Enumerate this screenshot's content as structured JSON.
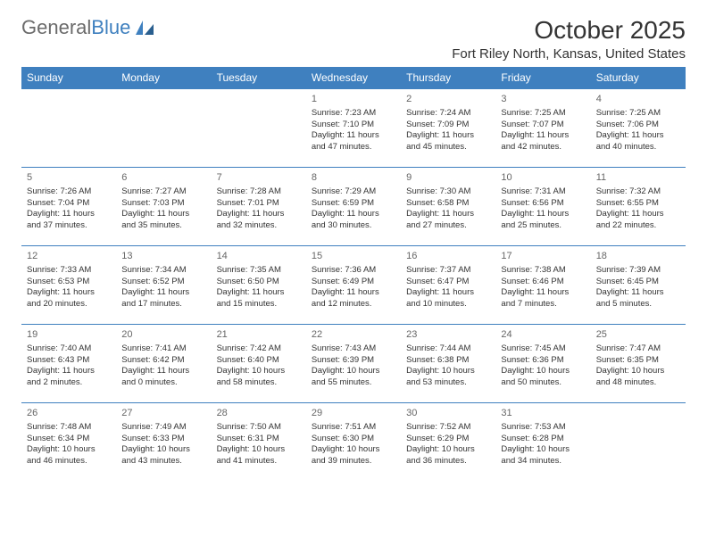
{
  "brand": {
    "word1": "General",
    "word2": "Blue"
  },
  "colors": {
    "accent": "#3f80bf",
    "text": "#333333",
    "muted": "#6b6b6b",
    "bg": "#ffffff"
  },
  "title": "October 2025",
  "location": "Fort Riley North, Kansas, United States",
  "day_headers": [
    "Sunday",
    "Monday",
    "Tuesday",
    "Wednesday",
    "Thursday",
    "Friday",
    "Saturday"
  ],
  "weeks": [
    [
      null,
      null,
      null,
      {
        "n": "1",
        "sr": "Sunrise: 7:23 AM",
        "ss": "Sunset: 7:10 PM",
        "dl": "Daylight: 11 hours and 47 minutes."
      },
      {
        "n": "2",
        "sr": "Sunrise: 7:24 AM",
        "ss": "Sunset: 7:09 PM",
        "dl": "Daylight: 11 hours and 45 minutes."
      },
      {
        "n": "3",
        "sr": "Sunrise: 7:25 AM",
        "ss": "Sunset: 7:07 PM",
        "dl": "Daylight: 11 hours and 42 minutes."
      },
      {
        "n": "4",
        "sr": "Sunrise: 7:25 AM",
        "ss": "Sunset: 7:06 PM",
        "dl": "Daylight: 11 hours and 40 minutes."
      }
    ],
    [
      {
        "n": "5",
        "sr": "Sunrise: 7:26 AM",
        "ss": "Sunset: 7:04 PM",
        "dl": "Daylight: 11 hours and 37 minutes."
      },
      {
        "n": "6",
        "sr": "Sunrise: 7:27 AM",
        "ss": "Sunset: 7:03 PM",
        "dl": "Daylight: 11 hours and 35 minutes."
      },
      {
        "n": "7",
        "sr": "Sunrise: 7:28 AM",
        "ss": "Sunset: 7:01 PM",
        "dl": "Daylight: 11 hours and 32 minutes."
      },
      {
        "n": "8",
        "sr": "Sunrise: 7:29 AM",
        "ss": "Sunset: 6:59 PM",
        "dl": "Daylight: 11 hours and 30 minutes."
      },
      {
        "n": "9",
        "sr": "Sunrise: 7:30 AM",
        "ss": "Sunset: 6:58 PM",
        "dl": "Daylight: 11 hours and 27 minutes."
      },
      {
        "n": "10",
        "sr": "Sunrise: 7:31 AM",
        "ss": "Sunset: 6:56 PM",
        "dl": "Daylight: 11 hours and 25 minutes."
      },
      {
        "n": "11",
        "sr": "Sunrise: 7:32 AM",
        "ss": "Sunset: 6:55 PM",
        "dl": "Daylight: 11 hours and 22 minutes."
      }
    ],
    [
      {
        "n": "12",
        "sr": "Sunrise: 7:33 AM",
        "ss": "Sunset: 6:53 PM",
        "dl": "Daylight: 11 hours and 20 minutes."
      },
      {
        "n": "13",
        "sr": "Sunrise: 7:34 AM",
        "ss": "Sunset: 6:52 PM",
        "dl": "Daylight: 11 hours and 17 minutes."
      },
      {
        "n": "14",
        "sr": "Sunrise: 7:35 AM",
        "ss": "Sunset: 6:50 PM",
        "dl": "Daylight: 11 hours and 15 minutes."
      },
      {
        "n": "15",
        "sr": "Sunrise: 7:36 AM",
        "ss": "Sunset: 6:49 PM",
        "dl": "Daylight: 11 hours and 12 minutes."
      },
      {
        "n": "16",
        "sr": "Sunrise: 7:37 AM",
        "ss": "Sunset: 6:47 PM",
        "dl": "Daylight: 11 hours and 10 minutes."
      },
      {
        "n": "17",
        "sr": "Sunrise: 7:38 AM",
        "ss": "Sunset: 6:46 PM",
        "dl": "Daylight: 11 hours and 7 minutes."
      },
      {
        "n": "18",
        "sr": "Sunrise: 7:39 AM",
        "ss": "Sunset: 6:45 PM",
        "dl": "Daylight: 11 hours and 5 minutes."
      }
    ],
    [
      {
        "n": "19",
        "sr": "Sunrise: 7:40 AM",
        "ss": "Sunset: 6:43 PM",
        "dl": "Daylight: 11 hours and 2 minutes."
      },
      {
        "n": "20",
        "sr": "Sunrise: 7:41 AM",
        "ss": "Sunset: 6:42 PM",
        "dl": "Daylight: 11 hours and 0 minutes."
      },
      {
        "n": "21",
        "sr": "Sunrise: 7:42 AM",
        "ss": "Sunset: 6:40 PM",
        "dl": "Daylight: 10 hours and 58 minutes."
      },
      {
        "n": "22",
        "sr": "Sunrise: 7:43 AM",
        "ss": "Sunset: 6:39 PM",
        "dl": "Daylight: 10 hours and 55 minutes."
      },
      {
        "n": "23",
        "sr": "Sunrise: 7:44 AM",
        "ss": "Sunset: 6:38 PM",
        "dl": "Daylight: 10 hours and 53 minutes."
      },
      {
        "n": "24",
        "sr": "Sunrise: 7:45 AM",
        "ss": "Sunset: 6:36 PM",
        "dl": "Daylight: 10 hours and 50 minutes."
      },
      {
        "n": "25",
        "sr": "Sunrise: 7:47 AM",
        "ss": "Sunset: 6:35 PM",
        "dl": "Daylight: 10 hours and 48 minutes."
      }
    ],
    [
      {
        "n": "26",
        "sr": "Sunrise: 7:48 AM",
        "ss": "Sunset: 6:34 PM",
        "dl": "Daylight: 10 hours and 46 minutes."
      },
      {
        "n": "27",
        "sr": "Sunrise: 7:49 AM",
        "ss": "Sunset: 6:33 PM",
        "dl": "Daylight: 10 hours and 43 minutes."
      },
      {
        "n": "28",
        "sr": "Sunrise: 7:50 AM",
        "ss": "Sunset: 6:31 PM",
        "dl": "Daylight: 10 hours and 41 minutes."
      },
      {
        "n": "29",
        "sr": "Sunrise: 7:51 AM",
        "ss": "Sunset: 6:30 PM",
        "dl": "Daylight: 10 hours and 39 minutes."
      },
      {
        "n": "30",
        "sr": "Sunrise: 7:52 AM",
        "ss": "Sunset: 6:29 PM",
        "dl": "Daylight: 10 hours and 36 minutes."
      },
      {
        "n": "31",
        "sr": "Sunrise: 7:53 AM",
        "ss": "Sunset: 6:28 PM",
        "dl": "Daylight: 10 hours and 34 minutes."
      },
      null
    ]
  ]
}
